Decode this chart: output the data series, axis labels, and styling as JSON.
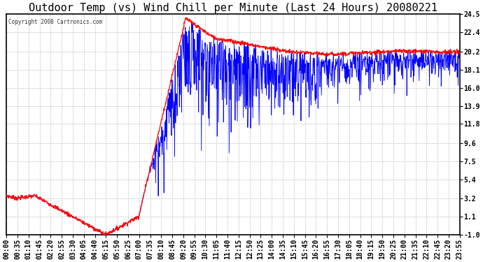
{
  "title": "Outdoor Temp (vs) Wind Chill per Minute (Last 24 Hours) 20080221",
  "copyright_text": "Copyright 2008 Cartronics.com",
  "y_min": -1.0,
  "y_max": 24.5,
  "y_ticks": [
    24.5,
    22.4,
    20.2,
    18.1,
    16.0,
    13.9,
    11.8,
    9.6,
    7.5,
    5.4,
    3.2,
    1.1,
    -1.0
  ],
  "x_tick_labels": [
    "00:00",
    "00:35",
    "01:10",
    "01:45",
    "02:20",
    "02:55",
    "03:30",
    "04:05",
    "04:40",
    "05:15",
    "05:50",
    "06:25",
    "07:00",
    "07:35",
    "08:10",
    "08:45",
    "09:20",
    "09:55",
    "10:30",
    "11:05",
    "11:40",
    "12:15",
    "12:50",
    "13:25",
    "14:00",
    "14:35",
    "15:10",
    "15:45",
    "16:20",
    "16:55",
    "17:30",
    "18:05",
    "18:40",
    "19:15",
    "19:50",
    "20:25",
    "21:00",
    "21:35",
    "22:10",
    "22:45",
    "23:20",
    "23:55"
  ],
  "outdoor_color": "#ff0000",
  "windchill_color": "#0000ff",
  "background_color": "#ffffff",
  "grid_color": "#c0c0c0",
  "title_fontsize": 11,
  "tick_fontsize": 7
}
